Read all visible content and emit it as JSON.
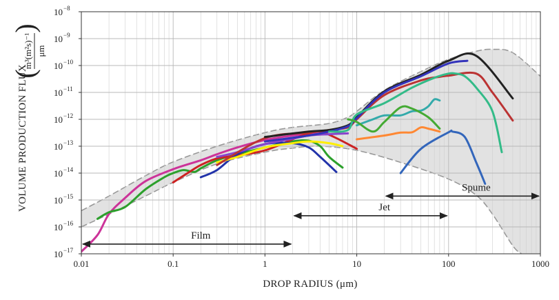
{
  "chart_data": {
    "type": "line",
    "xlabel": "DROP RADIUS (μm)",
    "ylabel": "VOLUME PRODUCTION FLUX",
    "ylabel_units": {
      "numerator": "m³(m²s)⁻¹",
      "denominator": "μm"
    },
    "x_scale": "log",
    "y_scale": "log",
    "xlim": [
      0.01,
      1000
    ],
    "ylim": [
      1e-17,
      1e-08
    ],
    "x_ticks": [
      {
        "value": 0.01,
        "label": "0.01"
      },
      {
        "value": 0.1,
        "label": "0.1"
      },
      {
        "value": 1,
        "label": "1"
      },
      {
        "value": 10,
        "label": "10"
      },
      {
        "value": 100,
        "label": "100"
      },
      {
        "value": 1000,
        "label": "1000"
      }
    ],
    "y_ticks": [
      {
        "value": 1e-17,
        "base": "10",
        "exp": "−17"
      },
      {
        "value": 1e-16,
        "base": "10",
        "exp": "−16"
      },
      {
        "value": 1e-15,
        "base": "10",
        "exp": "−15"
      },
      {
        "value": 1e-14,
        "base": "10",
        "exp": "−14"
      },
      {
        "value": 1e-13,
        "base": "10",
        "exp": "−13"
      },
      {
        "value": 1e-12,
        "base": "10",
        "exp": "−12"
      },
      {
        "value": 1e-11,
        "base": "10",
        "exp": "−11"
      },
      {
        "value": 1e-10,
        "base": "10",
        "exp": "−10"
      },
      {
        "value": 1e-09,
        "base": "10",
        "exp": "−9"
      },
      {
        "value": 1e-08,
        "base": "10",
        "exp": "−8"
      }
    ],
    "grid": true,
    "envelope": {
      "fill": "#e2e2e2",
      "stroke": "#999999",
      "upper": [
        [
          0.01,
          4e-16
        ],
        [
          0.02,
          1.4e-15
        ],
        [
          0.05,
          8e-15
        ],
        [
          0.1,
          2.6e-14
        ],
        [
          0.3,
          1e-13
        ],
        [
          1,
          3.2e-13
        ],
        [
          2,
          5e-13
        ],
        [
          5,
          7e-13
        ],
        [
          8,
          1.2e-12
        ],
        [
          10,
          2e-12
        ],
        [
          20,
          1.2e-11
        ],
        [
          50,
          6e-11
        ],
        [
          100,
          1.7e-10
        ],
        [
          200,
          3.4e-10
        ],
        [
          300,
          4e-10
        ],
        [
          500,
          3e-10
        ],
        [
          1000,
          4e-11
        ]
      ],
      "lower": [
        [
          0.01,
          1e-16
        ],
        [
          0.02,
          3e-16
        ],
        [
          0.05,
          1.4e-15
        ],
        [
          0.1,
          4.5e-15
        ],
        [
          0.3,
          2.2e-14
        ],
        [
          1,
          6e-14
        ],
        [
          2,
          8.5e-14
        ],
        [
          4,
          1e-13
        ],
        [
          10,
          7e-14
        ],
        [
          30,
          2.5e-14
        ],
        [
          100,
          6e-15
        ],
        [
          200,
          1.5e-15
        ],
        [
          300,
          3e-16
        ],
        [
          500,
          2e-17
        ],
        [
          620,
          1e-17
        ]
      ]
    },
    "series": [
      {
        "color": "#cc3399",
        "points": [
          [
            0.01,
            1.2e-17
          ],
          [
            0.015,
            5e-17
          ],
          [
            0.02,
            3e-16
          ],
          [
            0.03,
            1.2e-15
          ],
          [
            0.05,
            5e-15
          ],
          [
            0.1,
            1.4e-14
          ],
          [
            0.2,
            3e-14
          ],
          [
            0.3,
            5e-14
          ],
          [
            0.5,
            9e-14
          ],
          [
            1,
            1.7e-13
          ],
          [
            2,
            2.5e-13
          ],
          [
            3,
            2.8e-13
          ],
          [
            4,
            3e-13
          ]
        ]
      },
      {
        "color": "#2ca02c",
        "points": [
          [
            0.015,
            2e-16
          ],
          [
            0.02,
            3.5e-16
          ],
          [
            0.03,
            5.5e-16
          ],
          [
            0.05,
            2.5e-15
          ],
          [
            0.08,
            7e-15
          ],
          [
            0.1,
            1e-14
          ],
          [
            0.13,
            1.3e-14
          ],
          [
            0.17,
            1.1e-14
          ],
          [
            0.2,
            1.5e-14
          ],
          [
            0.3,
            3e-14
          ],
          [
            0.5,
            5e-14
          ],
          [
            1,
            9e-14
          ],
          [
            2,
            1.5e-13
          ],
          [
            3,
            1.6e-13
          ],
          [
            4,
            1e-13
          ],
          [
            5,
            4e-14
          ],
          [
            7,
            1.6e-14
          ]
        ]
      },
      {
        "color": "#cc2222",
        "points": [
          [
            0.1,
            4.5e-15
          ],
          [
            0.15,
            1.1e-14
          ],
          [
            0.2,
            2e-14
          ],
          [
            0.3,
            3.5e-14
          ],
          [
            0.5,
            4.5e-14
          ],
          [
            1,
            7e-14
          ],
          [
            2,
            1.8e-13
          ],
          [
            3,
            3e-13
          ],
          [
            4,
            3.5e-13
          ],
          [
            6,
            2e-13
          ],
          [
            10,
            8e-14
          ]
        ]
      },
      {
        "color": "#2233aa",
        "points": [
          [
            0.2,
            7e-15
          ],
          [
            0.3,
            1.3e-14
          ],
          [
            0.5,
            5e-14
          ],
          [
            1,
            1.2e-13
          ],
          [
            2,
            1.3e-13
          ],
          [
            3,
            9e-14
          ],
          [
            4,
            4e-14
          ],
          [
            6,
            1.1e-14
          ]
        ]
      },
      {
        "color": "#ffee00",
        "points": [
          [
            0.3,
            2.5e-14
          ],
          [
            0.5,
            4e-14
          ],
          [
            1,
            9e-14
          ],
          [
            2,
            1.3e-13
          ],
          [
            3,
            1.5e-13
          ],
          [
            5,
            1.3e-13
          ],
          [
            7,
            1e-13
          ]
        ]
      },
      {
        "color": "#8844cc",
        "points": [
          [
            0.3,
            4e-14
          ],
          [
            0.5,
            6e-14
          ],
          [
            1,
            1.2e-13
          ],
          [
            2,
            1.9e-13
          ],
          [
            3,
            2.5e-13
          ],
          [
            5,
            2.8e-13
          ],
          [
            8,
            3e-13
          ]
        ]
      },
      {
        "color": "#bb3333",
        "points": [
          [
            0.3,
            2e-14
          ],
          [
            1,
            2e-13
          ],
          [
            3,
            3.2e-13
          ],
          [
            5,
            4e-13
          ],
          [
            8,
            5e-13
          ],
          [
            10,
            1e-12
          ],
          [
            20,
            8e-12
          ],
          [
            50,
            2.8e-11
          ],
          [
            80,
            3.8e-11
          ],
          [
            100,
            4.2e-11
          ],
          [
            200,
            5e-11
          ],
          [
            300,
            1e-11
          ],
          [
            500,
            9e-13
          ]
        ]
      },
      {
        "color": "#222222",
        "points": [
          [
            1,
            2.2e-13
          ],
          [
            3,
            3.5e-13
          ],
          [
            5,
            4e-13
          ],
          [
            8,
            6e-13
          ],
          [
            10,
            1.2e-12
          ],
          [
            20,
            1.1e-11
          ],
          [
            50,
            4.5e-11
          ],
          [
            100,
            1.5e-10
          ],
          [
            200,
            2.3e-10
          ],
          [
            500,
            6e-12
          ]
        ]
      },
      {
        "color": "#3333bb",
        "points": [
          [
            1,
            1.5e-13
          ],
          [
            3,
            2.5e-13
          ],
          [
            5,
            3.5e-13
          ],
          [
            8,
            5.5e-13
          ],
          [
            10,
            1.1e-12
          ],
          [
            20,
            1e-11
          ],
          [
            50,
            4e-11
          ],
          [
            100,
            1.2e-10
          ],
          [
            160,
            1.5e-10
          ]
        ]
      },
      {
        "color": "#33bb88",
        "points": [
          [
            5,
            3.5e-13
          ],
          [
            8,
            4e-13
          ],
          [
            10,
            1.5e-12
          ],
          [
            20,
            4e-12
          ],
          [
            40,
            1.5e-11
          ],
          [
            70,
            3.5e-11
          ],
          [
            100,
            5e-11
          ],
          [
            120,
            5e-11
          ],
          [
            150,
            4e-11
          ],
          [
            200,
            1.5e-11
          ],
          [
            300,
            2e-12
          ],
          [
            380,
            6e-14
          ]
        ]
      },
      {
        "color": "#33aaaa",
        "points": [
          [
            10,
            6e-13
          ],
          [
            15,
            1e-12
          ],
          [
            20,
            1.4e-12
          ],
          [
            30,
            1.4e-12
          ],
          [
            40,
            2e-12
          ],
          [
            50,
            2.1e-12
          ],
          [
            60,
            3e-12
          ],
          [
            70,
            5.5e-12
          ],
          [
            80,
            5e-12
          ]
        ]
      },
      {
        "color": "#44aa33",
        "points": [
          [
            8,
            1e-12
          ],
          [
            10,
            8e-13
          ],
          [
            15,
            3.5e-13
          ],
          [
            20,
            8e-13
          ],
          [
            30,
            2.8e-12
          ],
          [
            40,
            2.5e-12
          ],
          [
            60,
            1.2e-12
          ],
          [
            80,
            4.5e-13
          ]
        ]
      },
      {
        "color": "#ff8833",
        "points": [
          [
            10,
            1.8e-13
          ],
          [
            20,
            2.5e-13
          ],
          [
            30,
            3.2e-13
          ],
          [
            40,
            3.3e-13
          ],
          [
            50,
            5e-13
          ],
          [
            60,
            4.5e-13
          ],
          [
            80,
            3.5e-13
          ]
        ]
      },
      {
        "color": "#3366bb",
        "points": [
          [
            30,
            1e-14
          ],
          [
            50,
            8e-14
          ],
          [
            100,
            3.3e-13
          ],
          [
            110,
            3.5e-13
          ],
          [
            150,
            2.2e-13
          ],
          [
            200,
            2.5e-14
          ],
          [
            250,
            4e-15
          ]
        ]
      }
    ],
    "annotations": [
      {
        "label": "Film",
        "x_start": 0.01,
        "x_end": 2,
        "y": 2.3e-17,
        "label_x": 0.2
      },
      {
        "label": "Jet",
        "x_start": 2,
        "x_end": 100,
        "y": 2.6e-16,
        "label_x": 20
      },
      {
        "label": "Spume",
        "x_start": 20,
        "x_end": 1000,
        "y": 1.4e-15,
        "label_x": 200
      }
    ]
  }
}
